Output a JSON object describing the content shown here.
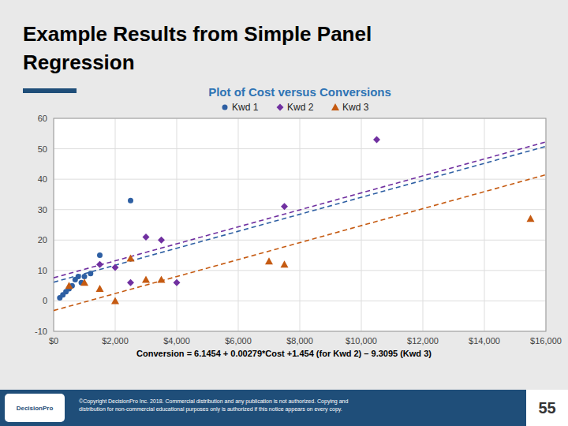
{
  "title_lines": [
    "Example Results from Simple Panel",
    "Regression"
  ],
  "logo_text": "DecisionPro",
  "footer_text": "©Copyright DecisionPro Inc. 2018. Commercial distribution and any publication is not authorized. Copying and\ndistribution for non-commercial educational purposes only is authorized if this notice appears on every copy.",
  "page_number": "55",
  "chart_data": {
    "type": "scatter",
    "title": "Plot of Cost versus Conversions",
    "annotations": [
      "Conversion = 6.1454 + 0.00279*Cost +1.454 (for Kwd 2) – 9.3095 (Kwd 3)"
    ],
    "grid": true,
    "legend": "top",
    "xlim": [
      0,
      16000
    ],
    "ylim": [
      -10,
      60
    ],
    "xticks": [
      {
        "value": 0,
        "label": "$0"
      },
      {
        "value": 2000,
        "label": "$2,000"
      },
      {
        "value": 4000,
        "label": "$4,000"
      },
      {
        "value": 6000,
        "label": "$6,000"
      },
      {
        "value": 8000,
        "label": "$8,000"
      },
      {
        "value": 10000,
        "label": "$10,000"
      },
      {
        "value": 12000,
        "label": "$12,000"
      },
      {
        "value": 14000,
        "label": "$14,000"
      },
      {
        "value": 16000,
        "label": "$16,000"
      }
    ],
    "yticks": [
      -10,
      0,
      10,
      20,
      30,
      40,
      50,
      60
    ],
    "series": [
      {
        "name": "Kwd 1",
        "color": "#2E5FA3",
        "marker": "circle",
        "x": [
          200,
          300,
          400,
          500,
          600,
          700,
          800,
          900,
          1000,
          1200,
          1500,
          2500
        ],
        "values": [
          1,
          2,
          3,
          4,
          5,
          7,
          8,
          6,
          8,
          9,
          15,
          33
        ]
      },
      {
        "name": "Kwd 2",
        "color": "#7030A0",
        "marker": "diamond",
        "x": [
          1500,
          2000,
          2500,
          3000,
          3500,
          4000,
          7500,
          10500
        ],
        "values": [
          12,
          11,
          6,
          21,
          20,
          6,
          31,
          53
        ]
      },
      {
        "name": "Kwd 3",
        "color": "#C55A11",
        "marker": "triangle",
        "x": [
          500,
          1000,
          1500,
          2000,
          2500,
          3000,
          3500,
          7000,
          7500,
          15500
        ],
        "values": [
          5,
          6,
          4,
          0,
          14,
          7,
          7,
          13,
          12,
          27
        ]
      },
      {
        "type": "line",
        "line_style": "dashed",
        "color": "#2E5FA3",
        "x": [
          0,
          16000
        ],
        "values": [
          6.1454,
          50.7854
        ]
      },
      {
        "type": "line",
        "line_style": "dashed",
        "color": "#7030A0",
        "x": [
          0,
          16000
        ],
        "values": [
          7.5994,
          52.2394
        ]
      },
      {
        "type": "line",
        "line_style": "dashed",
        "color": "#C55A11",
        "x": [
          0,
          16000
        ],
        "values": [
          -3.1641,
          41.4759
        ]
      }
    ]
  }
}
